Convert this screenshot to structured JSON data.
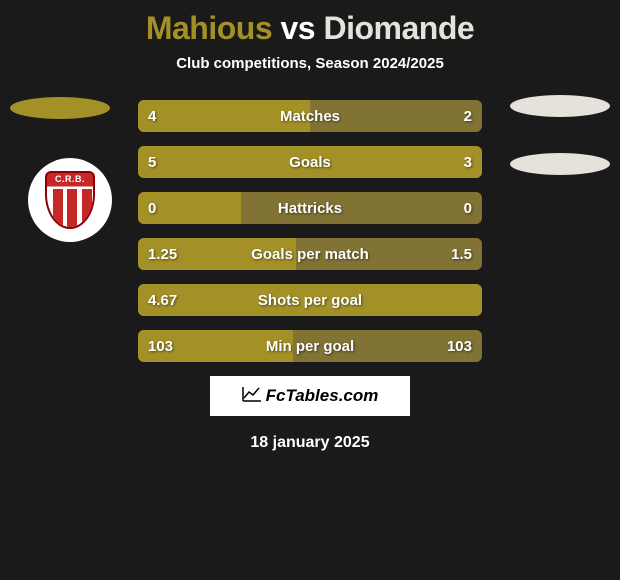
{
  "title": {
    "player1": "Mahious",
    "vs": "vs",
    "player2": "Diomande",
    "player1_color": "#a39127",
    "player2_color": "#e4e2da"
  },
  "subtitle": "Club competitions, Season 2024/2025",
  "shapes": {
    "left_color": "#a39127",
    "right_color": "#e4e2da"
  },
  "club_badge": {
    "text": "C.R.B."
  },
  "bars": {
    "bar_bg": "#807334",
    "fill_color": "#a39127",
    "rows": [
      {
        "label": "Matches",
        "left": "4",
        "right": "2",
        "fill_pct": 50
      },
      {
        "label": "Goals",
        "left": "5",
        "right": "3",
        "fill_pct": 100
      },
      {
        "label": "Hattricks",
        "left": "0",
        "right": "0",
        "fill_pct": 30
      },
      {
        "label": "Goals per match",
        "left": "1.25",
        "right": "1.5",
        "fill_pct": 46
      },
      {
        "label": "Shots per goal",
        "left": "4.67",
        "right": "",
        "fill_pct": 100
      },
      {
        "label": "Min per goal",
        "left": "103",
        "right": "103",
        "fill_pct": 45
      }
    ]
  },
  "footer": {
    "logo_text": "FcTables.com",
    "date": "18 january 2025"
  }
}
